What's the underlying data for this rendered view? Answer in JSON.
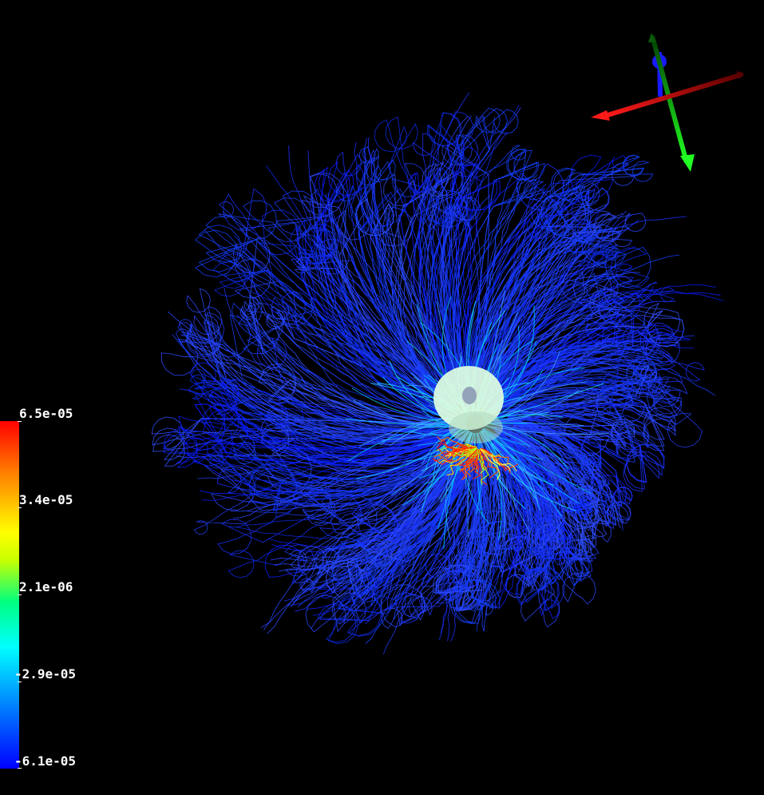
{
  "render_view": {
    "background_color": "#000000",
    "streamline_color_dominant": "#1a3cff",
    "core_color": "#d8ffd8"
  },
  "color_bar": {
    "colormap": [
      "#0000ff",
      "#0080ff",
      "#00ffff",
      "#00ff80",
      "#ffff00",
      "#ff7f00",
      "#ff0000"
    ],
    "labels": [
      "6.5e-05",
      "3.4e-05",
      "2.1e-06",
      "-2.9e-05",
      "-6.1e-05"
    ]
  },
  "orientation_axes": {
    "x_axis_color": "#ff2020",
    "y_axis_color": "#20ff20",
    "z_axis_color": "#2020ff"
  }
}
